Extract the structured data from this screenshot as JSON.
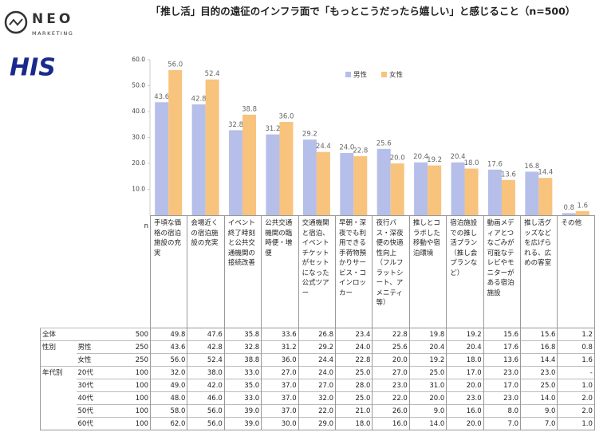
{
  "header": {
    "logo_top": "NEO",
    "logo_sub": "MARKETING",
    "logo_his": "HIS"
  },
  "chart_data": {
    "type": "bar",
    "title": "「推し活」目的の遠征のインフラ面で「もっとこうだったら嬉しい」と感じること（n=500）",
    "categories": [
      "手頃な価格の宿泊施設の充実",
      "会場近くの宿泊施設の充実",
      "イベント終了時刻と公共交通機関の接続改善",
      "公共交通機関の臨時便・増便",
      "交通機関と宿泊、イベントチケットがセットになった公式ツアー",
      "早朝・深夜でも利用できる手荷物預かりサービス・コインロッカー",
      "夜行バス・深夜便の快適性向上（フルフラットシート、アメニティ等）",
      "推しとコラボした移動や宿泊環境",
      "宿泊施設での推し活プラン（推し会プランなど）",
      "動画メディアとつなごみが可能なテレビやモニターがある宿泊施設",
      "推し活グッズなどを広げられる、広めの客室",
      "その他"
    ],
    "series": [
      {
        "name": "男性",
        "color": "#b5bfe9",
        "values": [
          43.6,
          42.8,
          32.8,
          31.2,
          29.2,
          24.0,
          25.6,
          20.4,
          20.4,
          17.6,
          16.8,
          0.8
        ],
        "value_labels": [
          "43.6",
          "42.8",
          "32.8",
          "31.2",
          "29.2",
          "24.0",
          "25.6",
          "20.4",
          "20.4",
          "17.6",
          "16.8",
          "0.8"
        ]
      },
      {
        "name": "女性",
        "color": "#f8c37d",
        "values": [
          56.0,
          52.4,
          38.8,
          36.0,
          24.4,
          22.8,
          20.0,
          19.2,
          18.0,
          13.6,
          14.4,
          1.6
        ],
        "value_labels": [
          "56.0",
          "52.4",
          "38.8",
          "36.0",
          "24.4",
          "22.8",
          "20.0",
          "19.2",
          "18.0",
          "13.6",
          "14.4",
          "1.6"
        ]
      }
    ],
    "ylim": [
      0,
      60
    ],
    "yticks": [
      {
        "value": 10,
        "label": "10.0"
      },
      {
        "value": 20,
        "label": "20.0"
      },
      {
        "value": 30,
        "label": "30.0"
      },
      {
        "value": 40,
        "label": "40.0"
      },
      {
        "value": 50,
        "label": "50.0"
      },
      {
        "value": 60,
        "label": "60.0"
      }
    ],
    "legend": "top-right"
  },
  "table": {
    "n_label": "n",
    "rows": [
      {
        "group": "全体",
        "n": "500",
        "values": [
          "49.8",
          "47.6",
          "35.8",
          "33.6",
          "26.8",
          "23.4",
          "22.8",
          "19.8",
          "19.2",
          "15.6",
          "15.6",
          "1.2"
        ]
      },
      {
        "group": "性別",
        "label": "男性",
        "n": "250",
        "values": [
          "43.6",
          "42.8",
          "32.8",
          "31.2",
          "29.2",
          "24.0",
          "25.6",
          "20.4",
          "20.4",
          "17.6",
          "16.8",
          "0.8"
        ]
      },
      {
        "label": "女性",
        "n": "250",
        "values": [
          "56.0",
          "52.4",
          "38.8",
          "36.0",
          "24.4",
          "22.8",
          "20.0",
          "19.2",
          "18.0",
          "13.6",
          "14.4",
          "1.6"
        ]
      },
      {
        "group": "年代別",
        "label": "20代",
        "n": "100",
        "values": [
          "32.0",
          "38.0",
          "33.0",
          "27.0",
          "24.0",
          "25.0",
          "27.0",
          "25.0",
          "17.0",
          "23.0",
          "23.0",
          "-"
        ]
      },
      {
        "label": "30代",
        "n": "100",
        "values": [
          "49.0",
          "42.0",
          "35.0",
          "37.0",
          "27.0",
          "28.0",
          "23.0",
          "31.0",
          "20.0",
          "17.0",
          "25.0",
          "1.0"
        ]
      },
      {
        "label": "40代",
        "n": "100",
        "values": [
          "48.0",
          "46.0",
          "33.0",
          "37.0",
          "32.0",
          "25.0",
          "22.0",
          "20.0",
          "23.0",
          "23.0",
          "14.0",
          "2.0"
        ]
      },
      {
        "label": "50代",
        "n": "100",
        "values": [
          "58.0",
          "56.0",
          "39.0",
          "37.0",
          "22.0",
          "21.0",
          "26.0",
          "9.0",
          "16.0",
          "8.0",
          "9.0",
          "2.0"
        ]
      },
      {
        "label": "60代",
        "n": "100",
        "values": [
          "62.0",
          "56.0",
          "39.0",
          "30.0",
          "29.0",
          "18.0",
          "16.0",
          "14.0",
          "20.0",
          "7.0",
          "7.0",
          "1.0"
        ]
      }
    ]
  }
}
